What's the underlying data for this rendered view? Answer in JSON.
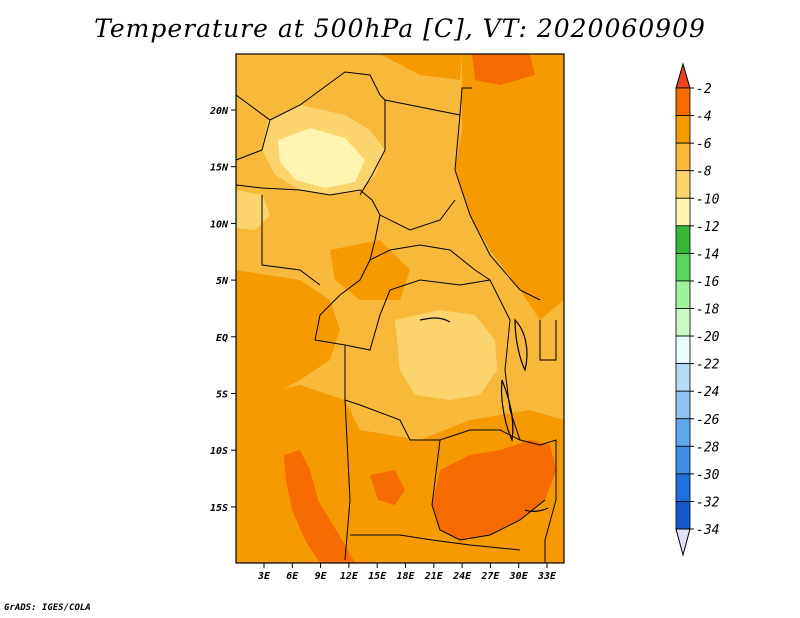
{
  "title": "Temperature at 500hPa [C], VT: 2020060909",
  "credit": "GrADS: IGES/COLA",
  "map": {
    "lat_ticks": [
      "20N",
      "15N",
      "10N",
      "5N",
      "EQ",
      "5S",
      "10S",
      "15S"
    ],
    "lon_ticks": [
      "3E",
      "6E",
      "9E",
      "12E",
      "15E",
      "18E",
      "21E",
      "24E",
      "27E",
      "30E",
      "33E"
    ]
  },
  "colorbar": {
    "labels": [
      "-2",
      "-4",
      "-6",
      "-8",
      "-10",
      "-12",
      "-14",
      "-16",
      "-18",
      "-20",
      "-22",
      "-24",
      "-26",
      "-28",
      "-30",
      "-32",
      "-34"
    ],
    "colors": [
      "#e8421e",
      "#f56b00",
      "#f59a00",
      "#f8b93b",
      "#fbd46d",
      "#fff5b0",
      "#36b93a",
      "#5cd561",
      "#9df29a",
      "#c8fbc4",
      "#e8fdfc",
      "#b4dcf9",
      "#8ec3f2",
      "#5fa7ec",
      "#3f8bea",
      "#1f6fde",
      "#1657c8",
      "#0e42ab",
      "#101a6c"
    ],
    "low_cap_color": "#e0e0f8"
  },
  "palette": {
    "field_base": "#f8b93b",
    "field_warm": "#f59a00",
    "field_hot": "#f56b00",
    "field_cool": "#fbd46d",
    "field_coolest": "#fff5b0"
  }
}
